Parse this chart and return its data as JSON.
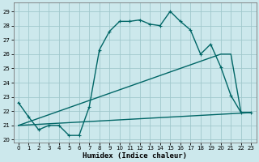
{
  "xlabel": "Humidex (Indice chaleur)",
  "xlim": [
    -0.5,
    23.5
  ],
  "ylim": [
    19.8,
    29.6
  ],
  "xticks": [
    0,
    1,
    2,
    3,
    4,
    5,
    6,
    7,
    8,
    9,
    10,
    11,
    12,
    13,
    14,
    15,
    16,
    17,
    18,
    19,
    20,
    21,
    22,
    23
  ],
  "yticks": [
    20,
    21,
    22,
    23,
    24,
    25,
    26,
    27,
    28,
    29
  ],
  "bg_color": "#cce8ec",
  "grid_color": "#a0c8cc",
  "line_color": "#006666",
  "line_width": 1.0,
  "marker": "+",
  "marker_size": 3.5,
  "marker_lw": 0.8,
  "series1_x": [
    0,
    1,
    2,
    3,
    4,
    5,
    6,
    7,
    8,
    9,
    10,
    11,
    12,
    13,
    14,
    15,
    16,
    17,
    18,
    19,
    20,
    21,
    22,
    23
  ],
  "series1_y": [
    22.6,
    21.6,
    20.7,
    21.0,
    21.0,
    20.3,
    20.3,
    22.3,
    26.3,
    27.6,
    28.3,
    28.3,
    28.4,
    28.1,
    28.0,
    29.0,
    28.3,
    27.7,
    26.0,
    26.7,
    25.1,
    23.1,
    21.9,
    21.9
  ],
  "series2_x": [
    0,
    23
  ],
  "series2_y": [
    21.0,
    21.9
  ],
  "series3_x": [
    0,
    20,
    21,
    22,
    23
  ],
  "series3_y": [
    21.0,
    26.0,
    26.0,
    21.9,
    21.9
  ],
  "tick_fontsize": 5.0,
  "xlabel_fontsize": 6.5
}
